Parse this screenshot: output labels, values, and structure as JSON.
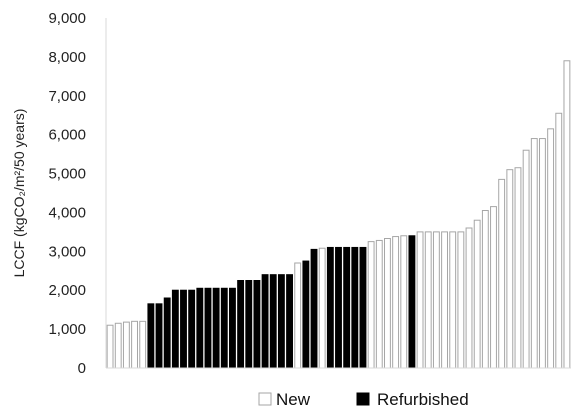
{
  "chart_data": {
    "type": "bar",
    "ylabel": "LCCF (kgCO₂/m²/50 years)",
    "ylim": [
      0,
      9000
    ],
    "yticks": [
      "0",
      "1,000",
      "2,000",
      "3,000",
      "4,000",
      "5,000",
      "6,000",
      "7,000",
      "8,000",
      "9,000"
    ],
    "grid": false,
    "legend_position": "bottom",
    "series": [
      {
        "name": "New",
        "fill": "#ffffff",
        "stroke": "#a6a6a6"
      },
      {
        "name": "Refurbished",
        "fill": "#000000",
        "stroke": "#000000"
      }
    ],
    "bars": [
      {
        "value": 1100,
        "series": "New"
      },
      {
        "value": 1150,
        "series": "New"
      },
      {
        "value": 1180,
        "series": "New"
      },
      {
        "value": 1200,
        "series": "New"
      },
      {
        "value": 1200,
        "series": "New"
      },
      {
        "value": 1650,
        "series": "Refurbished"
      },
      {
        "value": 1650,
        "series": "Refurbished"
      },
      {
        "value": 1800,
        "series": "Refurbished"
      },
      {
        "value": 2000,
        "series": "Refurbished"
      },
      {
        "value": 2000,
        "series": "Refurbished"
      },
      {
        "value": 2000,
        "series": "Refurbished"
      },
      {
        "value": 2050,
        "series": "Refurbished"
      },
      {
        "value": 2050,
        "series": "Refurbished"
      },
      {
        "value": 2050,
        "series": "Refurbished"
      },
      {
        "value": 2050,
        "series": "Refurbished"
      },
      {
        "value": 2050,
        "series": "Refurbished"
      },
      {
        "value": 2250,
        "series": "Refurbished"
      },
      {
        "value": 2250,
        "series": "Refurbished"
      },
      {
        "value": 2250,
        "series": "Refurbished"
      },
      {
        "value": 2400,
        "series": "Refurbished"
      },
      {
        "value": 2400,
        "series": "Refurbished"
      },
      {
        "value": 2400,
        "series": "Refurbished"
      },
      {
        "value": 2400,
        "series": "Refurbished"
      },
      {
        "value": 2700,
        "series": "New"
      },
      {
        "value": 2750,
        "series": "Refurbished"
      },
      {
        "value": 3050,
        "series": "Refurbished"
      },
      {
        "value": 3080,
        "series": "New"
      },
      {
        "value": 3100,
        "series": "Refurbished"
      },
      {
        "value": 3100,
        "series": "Refurbished"
      },
      {
        "value": 3100,
        "series": "Refurbished"
      },
      {
        "value": 3100,
        "series": "Refurbished"
      },
      {
        "value": 3100,
        "series": "Refurbished"
      },
      {
        "value": 3250,
        "series": "New"
      },
      {
        "value": 3280,
        "series": "New"
      },
      {
        "value": 3330,
        "series": "New"
      },
      {
        "value": 3380,
        "series": "New"
      },
      {
        "value": 3400,
        "series": "New"
      },
      {
        "value": 3400,
        "series": "Refurbished"
      },
      {
        "value": 3500,
        "series": "New"
      },
      {
        "value": 3500,
        "series": "New"
      },
      {
        "value": 3500,
        "series": "New"
      },
      {
        "value": 3500,
        "series": "New"
      },
      {
        "value": 3500,
        "series": "New"
      },
      {
        "value": 3500,
        "series": "New"
      },
      {
        "value": 3600,
        "series": "New"
      },
      {
        "value": 3800,
        "series": "New"
      },
      {
        "value": 4050,
        "series": "New"
      },
      {
        "value": 4150,
        "series": "New"
      },
      {
        "value": 4850,
        "series": "New"
      },
      {
        "value": 5100,
        "series": "New"
      },
      {
        "value": 5150,
        "series": "New"
      },
      {
        "value": 5600,
        "series": "New"
      },
      {
        "value": 5900,
        "series": "New"
      },
      {
        "value": 5900,
        "series": "New"
      },
      {
        "value": 6150,
        "series": "New"
      },
      {
        "value": 6550,
        "series": "New"
      },
      {
        "value": 7900,
        "series": "New"
      }
    ]
  }
}
